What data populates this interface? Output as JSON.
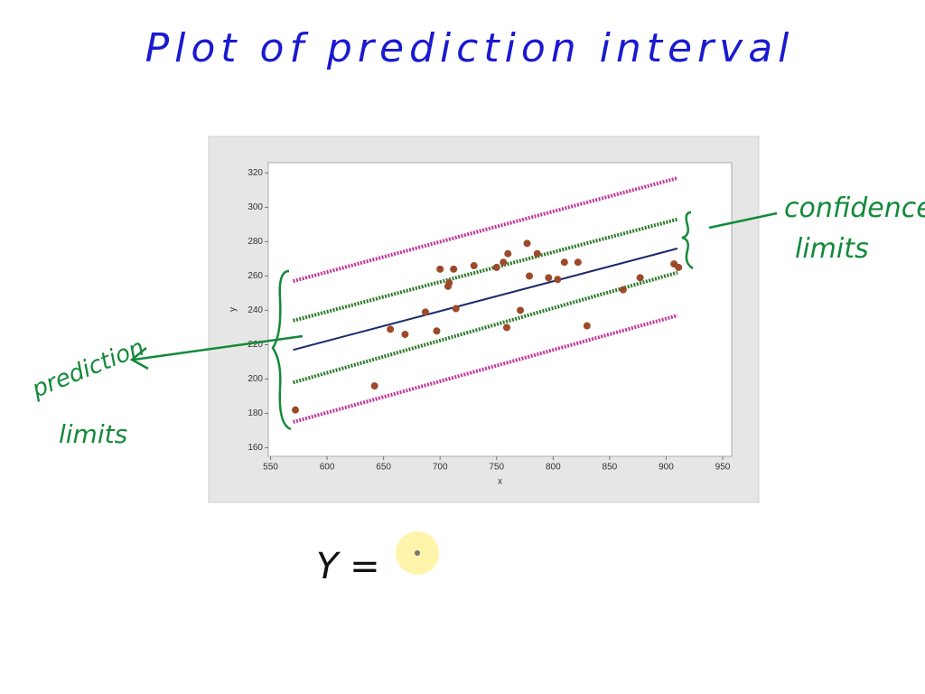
{
  "heading": "Plot of prediction interval",
  "annotations": {
    "confidence": [
      "confidence",
      "limits"
    ],
    "prediction": [
      "prediction",
      "limits"
    ]
  },
  "equation": "Y =",
  "chart_data": {
    "type": "scatter",
    "x_label": "x",
    "y_label": "y",
    "xlim": [
      548,
      958
    ],
    "ylim": [
      155,
      326
    ],
    "xticks": [
      550,
      600,
      650,
      700,
      750,
      800,
      850,
      900,
      950
    ],
    "yticks": [
      160,
      180,
      200,
      220,
      240,
      260,
      280,
      300,
      320
    ],
    "points": {
      "color": "#9c4a2a",
      "x": [
        572,
        642,
        656,
        669,
        687,
        697,
        700,
        707,
        708,
        712,
        714,
        730,
        750,
        756,
        759,
        760,
        771,
        777,
        779,
        786,
        796,
        804,
        810,
        822,
        830,
        862,
        877,
        907,
        911
      ],
      "y": [
        182,
        196,
        229,
        226,
        239,
        228,
        264,
        254,
        256,
        264,
        241,
        266,
        265,
        268,
        230,
        273,
        240,
        279,
        260,
        273,
        259,
        258,
        268,
        268,
        231,
        252,
        259,
        267,
        265
      ]
    },
    "lines": [
      {
        "x": [
          570,
          910
        ],
        "values": [
          217,
          276
        ],
        "color": "#1c2a6b",
        "style": "solid"
      },
      {
        "x": [
          570,
          910
        ],
        "values": [
          257,
          317
        ],
        "color": "#c2379b",
        "style": "dotted"
      },
      {
        "x": [
          570,
          910
        ],
        "values": [
          175,
          237
        ],
        "color": "#c2379b",
        "style": "dotted"
      },
      {
        "x": [
          570,
          910
        ],
        "values": [
          234,
          293
        ],
        "color": "#2e7a2a",
        "style": "dotted"
      },
      {
        "x": [
          570,
          910
        ],
        "values": [
          198,
          262
        ],
        "color": "#2e7a2a",
        "style": "dotted"
      }
    ]
  }
}
